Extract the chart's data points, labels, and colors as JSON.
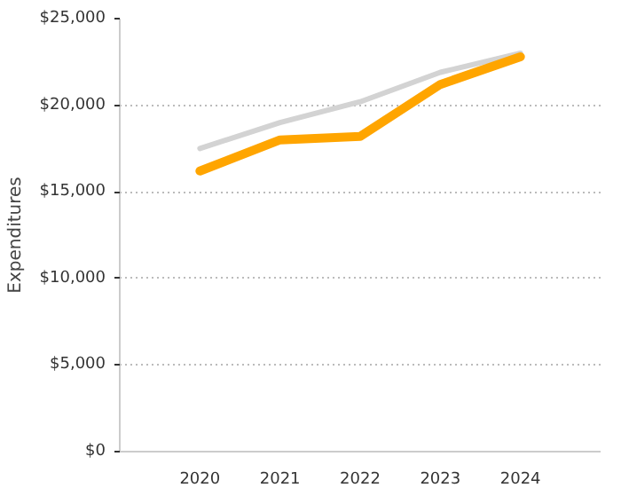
{
  "chart_data": {
    "type": "line",
    "ylabel": "Expenditures",
    "categories": [
      "2020",
      "2021",
      "2022",
      "2023",
      "2024"
    ],
    "series": [
      {
        "color": "#d3d3d3",
        "values": [
          17500,
          19000,
          20200,
          21900,
          23000
        ]
      },
      {
        "color": "#ffa500",
        "values": [
          16200,
          18000,
          18200,
          21200,
          22800
        ]
      }
    ],
    "ylim": [
      0,
      25000
    ],
    "yticks": [
      {
        "value": 0,
        "label": "$0"
      },
      {
        "value": 5000,
        "label": "$5,000"
      },
      {
        "value": 10000,
        "label": "$10,000"
      },
      {
        "value": 15000,
        "label": "$15,000"
      },
      {
        "value": 20000,
        "label": "$20,000"
      },
      {
        "value": 25000,
        "label": "$25,000"
      }
    ],
    "grid": "y",
    "line_style": "solid"
  }
}
